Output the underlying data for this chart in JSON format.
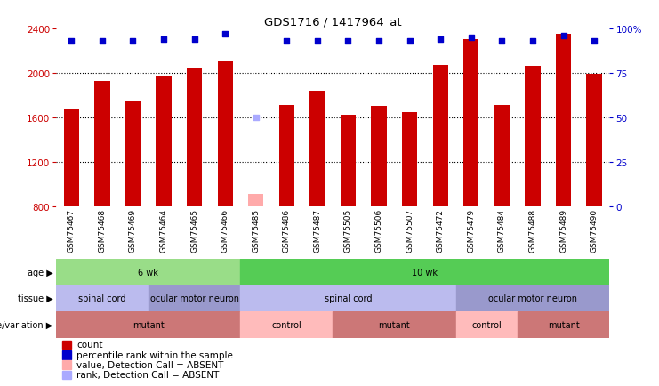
{
  "title": "GDS1716 / 1417964_at",
  "samples": [
    "GSM75467",
    "GSM75468",
    "GSM75469",
    "GSM75464",
    "GSM75465",
    "GSM75466",
    "GSM75485",
    "GSM75486",
    "GSM75487",
    "GSM75505",
    "GSM75506",
    "GSM75507",
    "GSM75472",
    "GSM75479",
    "GSM75484",
    "GSM75488",
    "GSM75489",
    "GSM75490"
  ],
  "counts": [
    1680,
    1930,
    1750,
    1970,
    2040,
    2100,
    null,
    1710,
    1840,
    1620,
    1700,
    1650,
    2070,
    2300,
    1710,
    2060,
    2350,
    1990
  ],
  "absent_count": 910,
  "absent_index": 6,
  "percentile_ranks": [
    93,
    93,
    93,
    94,
    94,
    97,
    null,
    93,
    93,
    93,
    93,
    93,
    94,
    95,
    93,
    93,
    96,
    93
  ],
  "absent_rank": 50,
  "absent_rank_index": 6,
  "ylim_left": [
    800,
    2400
  ],
  "ylim_right": [
    0,
    100
  ],
  "yticks_left": [
    800,
    1200,
    1600,
    2000,
    2400
  ],
  "yticks_right": [
    0,
    25,
    50,
    75,
    100
  ],
  "bar_color": "#cc0000",
  "absent_bar_color": "#ffaaaa",
  "dot_color": "#0000cc",
  "absent_dot_color": "#aaaaff",
  "grid_color": "#000000",
  "bg_color": "#ffffff",
  "label_color_left": "#cc0000",
  "label_color_right": "#0000cc",
  "age_groups": [
    {
      "label": "6 wk",
      "start": 0,
      "end": 6,
      "color": "#99dd88"
    },
    {
      "label": "10 wk",
      "start": 6,
      "end": 18,
      "color": "#55cc55"
    }
  ],
  "tissue_groups": [
    {
      "label": "spinal cord",
      "start": 0,
      "end": 3,
      "color": "#bbbbee"
    },
    {
      "label": "ocular motor neuron",
      "start": 3,
      "end": 6,
      "color": "#9999cc"
    },
    {
      "label": "spinal cord",
      "start": 6,
      "end": 13,
      "color": "#bbbbee"
    },
    {
      "label": "ocular motor neuron",
      "start": 13,
      "end": 18,
      "color": "#9999cc"
    }
  ],
  "genotype_groups": [
    {
      "label": "mutant",
      "start": 0,
      "end": 6,
      "color": "#cc7777"
    },
    {
      "label": "control",
      "start": 6,
      "end": 9,
      "color": "#ffbbbb"
    },
    {
      "label": "mutant",
      "start": 9,
      "end": 13,
      "color": "#cc7777"
    },
    {
      "label": "control",
      "start": 13,
      "end": 15,
      "color": "#ffbbbb"
    },
    {
      "label": "mutant",
      "start": 15,
      "end": 18,
      "color": "#cc7777"
    }
  ],
  "legend_items": [
    {
      "label": "count",
      "color": "#cc0000"
    },
    {
      "label": "percentile rank within the sample",
      "color": "#0000cc"
    },
    {
      "label": "value, Detection Call = ABSENT",
      "color": "#ffaaaa"
    },
    {
      "label": "rank, Detection Call = ABSENT",
      "color": "#aaaaff"
    }
  ]
}
